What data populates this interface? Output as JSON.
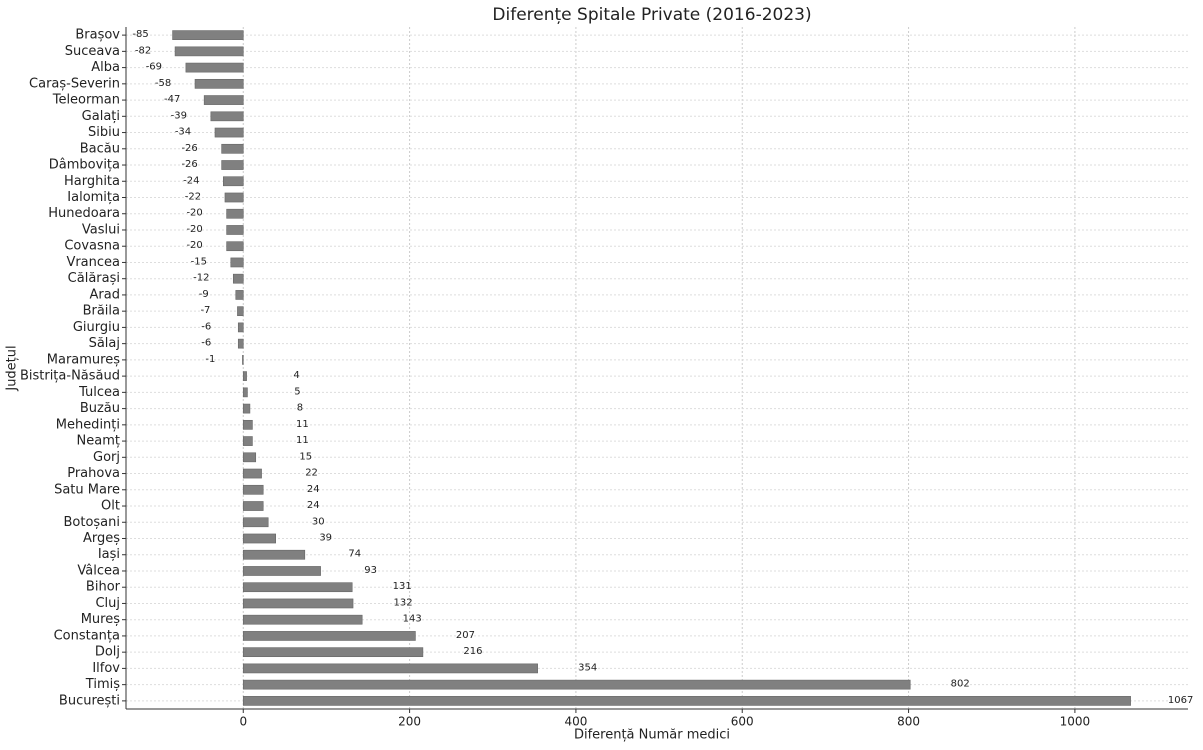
{
  "chart_data": {
    "type": "bar",
    "orientation": "horizontal",
    "title": "Diferențe Spitale Private (2016-2023)",
    "x_label": "Diferență Număr medici",
    "y_label": "Județul",
    "categories": [
      "Brașov",
      "Suceava",
      "Alba",
      "Caraș-Severin",
      "Teleorman",
      "Galați",
      "Sibiu",
      "Bacău",
      "Dâmbovița",
      "Harghita",
      "Ialomița",
      "Hunedoara",
      "Vaslui",
      "Covasna",
      "Vrancea",
      "Călărași",
      "Arad",
      "Brăila",
      "Giurgiu",
      "Sălaj",
      "Maramureș",
      "Bistrița-Năsăud",
      "Tulcea",
      "Buzău",
      "Mehedinți",
      "Neamț",
      "Gorj",
      "Prahova",
      "Satu Mare",
      "Olt",
      "Botoșani",
      "Argeș",
      "Iași",
      "Vâlcea",
      "Bihor",
      "Cluj",
      "Mureș",
      "Constanța",
      "Dolj",
      "Ilfov",
      "Timiș",
      "București"
    ],
    "values": [
      -85,
      -82,
      -69,
      -58,
      -47,
      -39,
      -34,
      -26,
      -26,
      -24,
      -22,
      -20,
      -20,
      -20,
      -15,
      -12,
      -9,
      -7,
      -6,
      -6,
      -1,
      4,
      5,
      8,
      11,
      11,
      15,
      22,
      24,
      24,
      30,
      39,
      74,
      93,
      131,
      132,
      143,
      207,
      216,
      354,
      802,
      1067
    ],
    "color": "#808080",
    "xlim": [
      -141,
      1136
    ],
    "xticks": [
      0,
      200,
      400,
      600,
      800,
      1000
    ],
    "grid": true
  }
}
